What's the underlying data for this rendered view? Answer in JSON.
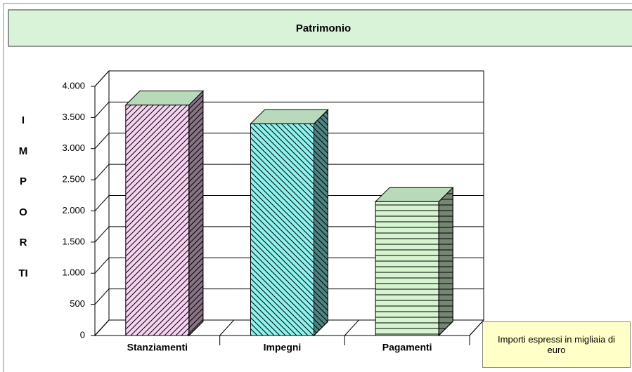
{
  "chart_data": {
    "type": "bar3d",
    "title": "Patrimonio",
    "y_label": "IMPORTI",
    "categories": [
      "Stanziamenti",
      "Impegni",
      "Pagamenti"
    ],
    "values": [
      3700,
      3400,
      2150
    ],
    "colors": [
      "#f7d3f2",
      "#8ef2ee",
      "#d6f4d0"
    ],
    "ylim": [
      0,
      4000
    ],
    "yticks": [
      0,
      500,
      {
        "value": 1000,
        "label": "1.000"
      },
      {
        "value": 1500,
        "label": "1.500"
      },
      {
        "value": 2000,
        "label": "2.000"
      },
      {
        "value": 2500,
        "label": "2.500"
      },
      {
        "value": 3000,
        "label": "3.000"
      },
      {
        "value": 3500,
        "label": "3.500"
      },
      {
        "value": 4000,
        "label": "4.000"
      }
    ],
    "grid": true,
    "annotation": "Importi espressi in migliaia di euro"
  }
}
